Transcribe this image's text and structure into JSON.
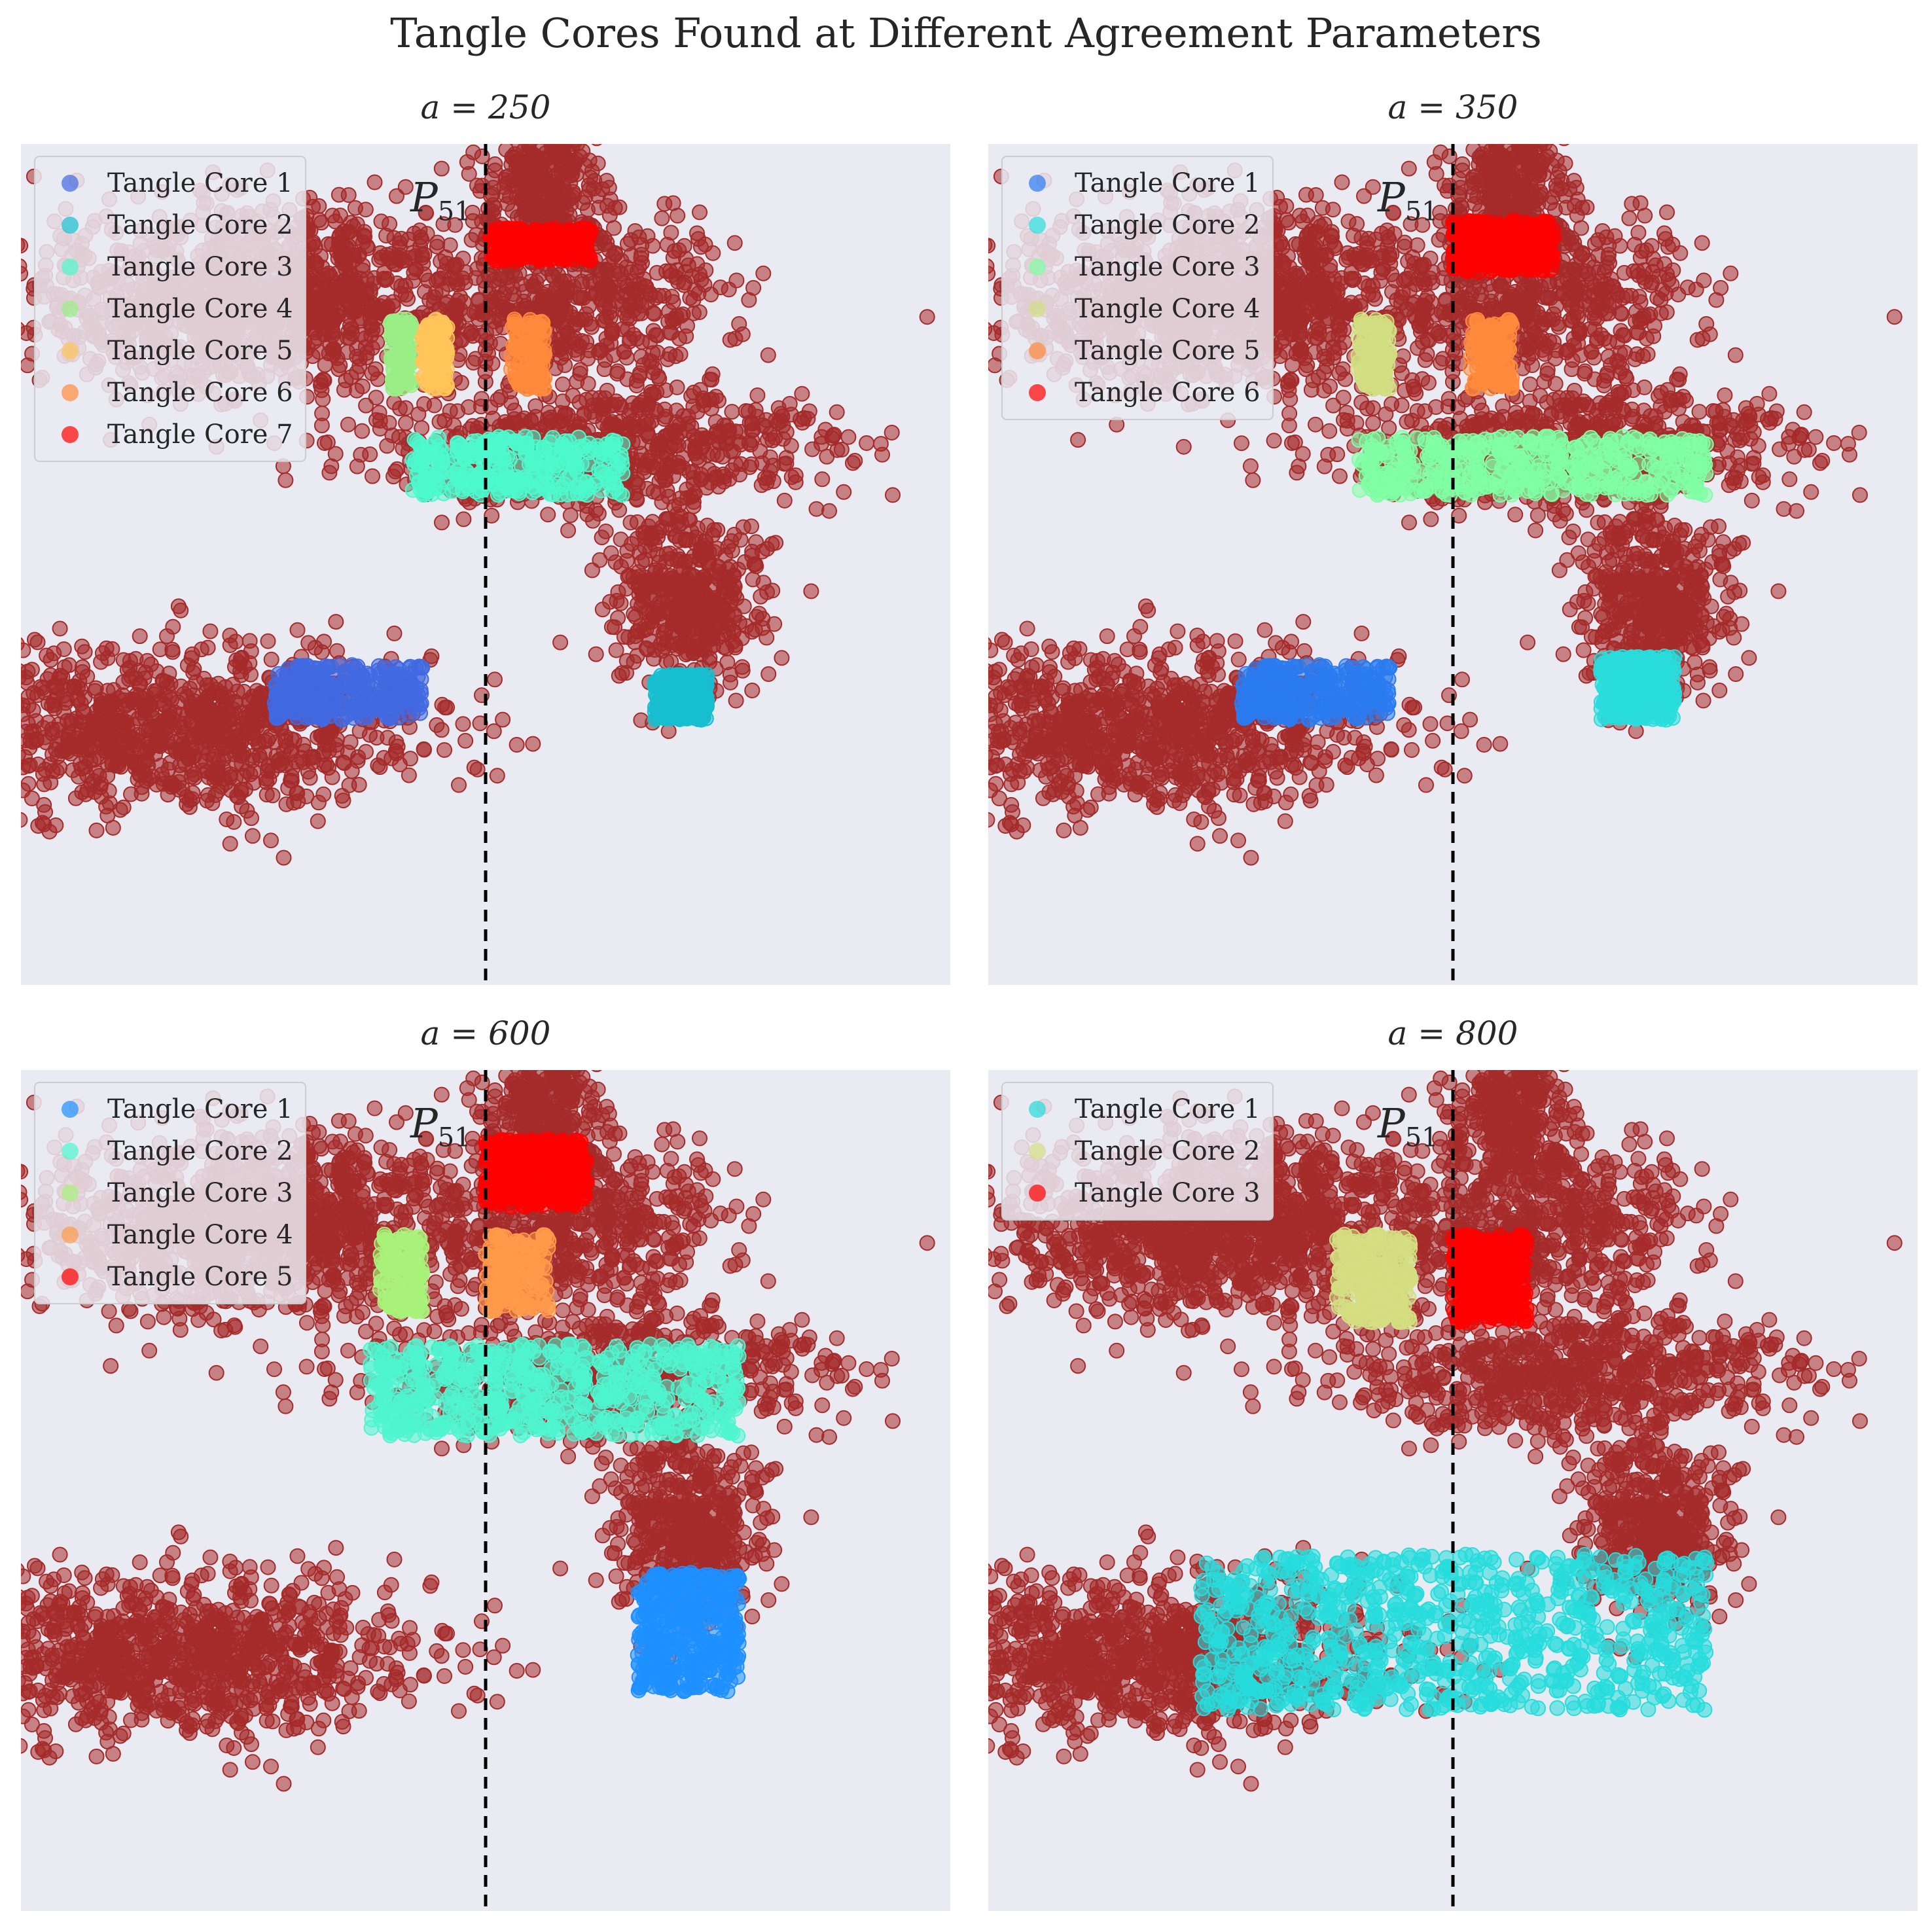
{
  "figure": {
    "title": "Tangle Cores Found at Different Agreement Parameters"
  },
  "colors": {
    "background_point": "#a52a2a",
    "plot_background": "#eaeaf2",
    "divider": "#000000"
  },
  "chart_data": [
    {
      "type": "scatter",
      "title": "a = 250",
      "annotation": {
        "base": "P",
        "sub": "51"
      },
      "xlim": [
        -2.2,
        2.2
      ],
      "ylim": [
        -2.4,
        2.2
      ],
      "grid": false,
      "legend_placement": "top-left",
      "divider_x": 0,
      "background_clusters": [
        {
          "cx": -1.1,
          "cy": 1.35,
          "sx": 0.55,
          "sy": 0.25,
          "n": 1300
        },
        {
          "cx": 0.45,
          "cy": 1.35,
          "sx": 0.35,
          "sy": 0.25,
          "n": 500
        },
        {
          "cx": 0.28,
          "cy": 1.95,
          "sx": 0.13,
          "sy": 0.25,
          "n": 350
        },
        {
          "cx": 0.55,
          "cy": 0.55,
          "sx": 0.55,
          "sy": 0.18,
          "n": 700
        },
        {
          "cx": 0.95,
          "cy": -0.3,
          "sx": 0.18,
          "sy": 0.25,
          "n": 450
        },
        {
          "cx": -1.4,
          "cy": -1.0,
          "sx": 0.55,
          "sy": 0.22,
          "n": 1000
        }
      ],
      "series": [
        {
          "name": "Tangle Core 1",
          "color": "#4169e1",
          "x_range": [
            -1.0,
            -0.3
          ],
          "y_range": [
            -0.95,
            -0.65
          ],
          "n": 260
        },
        {
          "name": "Tangle Core 2",
          "color": "#17becf",
          "x_range": [
            0.8,
            1.05
          ],
          "y_range": [
            -0.95,
            -0.7
          ],
          "n": 260
        },
        {
          "name": "Tangle Core 3",
          "color": "#4dfacd",
          "x_range": [
            -0.35,
            0.65
          ],
          "y_range": [
            0.28,
            0.6
          ],
          "n": 320
        },
        {
          "name": "Tangle Core 4",
          "color": "#9aee86",
          "x_range": [
            -0.45,
            -0.35
          ],
          "y_range": [
            0.86,
            1.24
          ],
          "n": 110
        },
        {
          "name": "Tangle Core 5",
          "color": "#ffc55a",
          "x_range": [
            -0.3,
            -0.18
          ],
          "y_range": [
            0.86,
            1.24
          ],
          "n": 110
        },
        {
          "name": "Tangle Core 6",
          "color": "#ff8a3d",
          "x_range": [
            0.12,
            0.28
          ],
          "y_range": [
            0.86,
            1.24
          ],
          "n": 110
        },
        {
          "name": "Tangle Core 7",
          "color": "#ff0000",
          "x_range": [
            0.02,
            0.5
          ],
          "y_range": [
            1.56,
            1.74
          ],
          "n": 220
        }
      ]
    },
    {
      "type": "scatter",
      "title": "a = 350",
      "annotation": {
        "base": "P",
        "sub": "51"
      },
      "xlim": [
        -2.2,
        2.2
      ],
      "ylim": [
        -2.4,
        2.2
      ],
      "grid": false,
      "legend_placement": "top-left",
      "divider_x": 0,
      "background_clusters": [
        {
          "cx": -1.1,
          "cy": 1.35,
          "sx": 0.55,
          "sy": 0.25,
          "n": 1300
        },
        {
          "cx": 0.45,
          "cy": 1.35,
          "sx": 0.35,
          "sy": 0.25,
          "n": 500
        },
        {
          "cx": 0.28,
          "cy": 1.95,
          "sx": 0.13,
          "sy": 0.25,
          "n": 350
        },
        {
          "cx": 0.55,
          "cy": 0.55,
          "sx": 0.55,
          "sy": 0.18,
          "n": 700
        },
        {
          "cx": 0.95,
          "cy": -0.3,
          "sx": 0.18,
          "sy": 0.25,
          "n": 450
        },
        {
          "cx": -1.4,
          "cy": -1.0,
          "sx": 0.55,
          "sy": 0.22,
          "n": 1000
        }
      ],
      "series": [
        {
          "name": "Tangle Core 1",
          "color": "#2b7bf0",
          "x_range": [
            -1.0,
            -0.3
          ],
          "y_range": [
            -0.95,
            -0.65
          ],
          "n": 260
        },
        {
          "name": "Tangle Core 2",
          "color": "#2adddd",
          "x_range": [
            0.7,
            1.05
          ],
          "y_range": [
            -0.95,
            -0.6
          ],
          "n": 300
        },
        {
          "name": "Tangle Core 3",
          "color": "#80ffa5",
          "x_range": [
            -0.45,
            1.2
          ],
          "y_range": [
            0.28,
            0.6
          ],
          "n": 480
        },
        {
          "name": "Tangle Core 4",
          "color": "#d2de81",
          "x_range": [
            -0.45,
            -0.3
          ],
          "y_range": [
            0.86,
            1.24
          ],
          "n": 120
        },
        {
          "name": "Tangle Core 5",
          "color": "#ff8a3d",
          "x_range": [
            0.08,
            0.28
          ],
          "y_range": [
            0.86,
            1.24
          ],
          "n": 120
        },
        {
          "name": "Tangle Core 6",
          "color": "#ff0000",
          "x_range": [
            0.0,
            0.48
          ],
          "y_range": [
            1.5,
            1.78
          ],
          "n": 280
        }
      ]
    },
    {
      "type": "scatter",
      "title": "a = 600",
      "annotation": {
        "base": "P",
        "sub": "51"
      },
      "xlim": [
        -2.2,
        2.2
      ],
      "ylim": [
        -2.4,
        2.2
      ],
      "grid": false,
      "legend_placement": "top-left",
      "divider_x": 0,
      "background_clusters": [
        {
          "cx": -1.1,
          "cy": 1.35,
          "sx": 0.55,
          "sy": 0.25,
          "n": 1300
        },
        {
          "cx": 0.45,
          "cy": 1.35,
          "sx": 0.35,
          "sy": 0.25,
          "n": 500
        },
        {
          "cx": 0.28,
          "cy": 1.95,
          "sx": 0.13,
          "sy": 0.25,
          "n": 350
        },
        {
          "cx": 0.55,
          "cy": 0.55,
          "sx": 0.55,
          "sy": 0.18,
          "n": 700
        },
        {
          "cx": 0.95,
          "cy": -0.3,
          "sx": 0.18,
          "sy": 0.25,
          "n": 450
        },
        {
          "cx": -1.4,
          "cy": -1.0,
          "sx": 0.55,
          "sy": 0.22,
          "n": 1000
        }
      ],
      "series": [
        {
          "name": "Tangle Core 1",
          "color": "#1e90ff",
          "x_range": [
            0.72,
            1.2
          ],
          "y_range": [
            -1.2,
            -0.55
          ],
          "n": 380
        },
        {
          "name": "Tangle Core 2",
          "color": "#4ff5d0",
          "x_range": [
            -0.55,
            1.2
          ],
          "y_range": [
            0.2,
            0.7
          ],
          "n": 650
        },
        {
          "name": "Tangle Core 3",
          "color": "#a9f27a",
          "x_range": [
            -0.5,
            -0.3
          ],
          "y_range": [
            0.88,
            1.3
          ],
          "n": 150
        },
        {
          "name": "Tangle Core 4",
          "color": "#ff9a4a",
          "x_range": [
            0.0,
            0.3
          ],
          "y_range": [
            0.88,
            1.3
          ],
          "n": 150
        },
        {
          "name": "Tangle Core 5",
          "color": "#ff0000",
          "x_range": [
            0.0,
            0.48
          ],
          "y_range": [
            1.45,
            1.82
          ],
          "n": 320
        }
      ]
    },
    {
      "type": "scatter",
      "title": "a = 800",
      "annotation": {
        "base": "P",
        "sub": "51"
      },
      "xlim": [
        -2.2,
        2.2
      ],
      "ylim": [
        -2.4,
        2.2
      ],
      "grid": false,
      "legend_placement": "top-left",
      "divider_x": 0,
      "background_clusters": [
        {
          "cx": -1.1,
          "cy": 1.35,
          "sx": 0.55,
          "sy": 0.25,
          "n": 1300
        },
        {
          "cx": 0.45,
          "cy": 1.35,
          "sx": 0.35,
          "sy": 0.25,
          "n": 500
        },
        {
          "cx": 0.28,
          "cy": 1.95,
          "sx": 0.13,
          "sy": 0.25,
          "n": 350
        },
        {
          "cx": 0.55,
          "cy": 0.55,
          "sx": 0.55,
          "sy": 0.18,
          "n": 700
        },
        {
          "cx": 0.95,
          "cy": -0.3,
          "sx": 0.18,
          "sy": 0.25,
          "n": 450
        },
        {
          "cx": -1.4,
          "cy": -1.0,
          "sx": 0.55,
          "sy": 0.22,
          "n": 1000
        }
      ],
      "series": [
        {
          "name": "Tangle Core 1",
          "color": "#26dcdc",
          "x_range": [
            -1.2,
            1.2
          ],
          "y_range": [
            -1.3,
            -0.45
          ],
          "n": 900
        },
        {
          "name": "Tangle Core 2",
          "color": "#d4de82",
          "x_range": [
            -0.55,
            -0.2
          ],
          "y_range": [
            0.82,
            1.3
          ],
          "n": 260
        },
        {
          "name": "Tangle Core 3",
          "color": "#ff0000",
          "x_range": [
            0.0,
            0.35
          ],
          "y_range": [
            0.82,
            1.3
          ],
          "n": 260
        }
      ]
    }
  ]
}
